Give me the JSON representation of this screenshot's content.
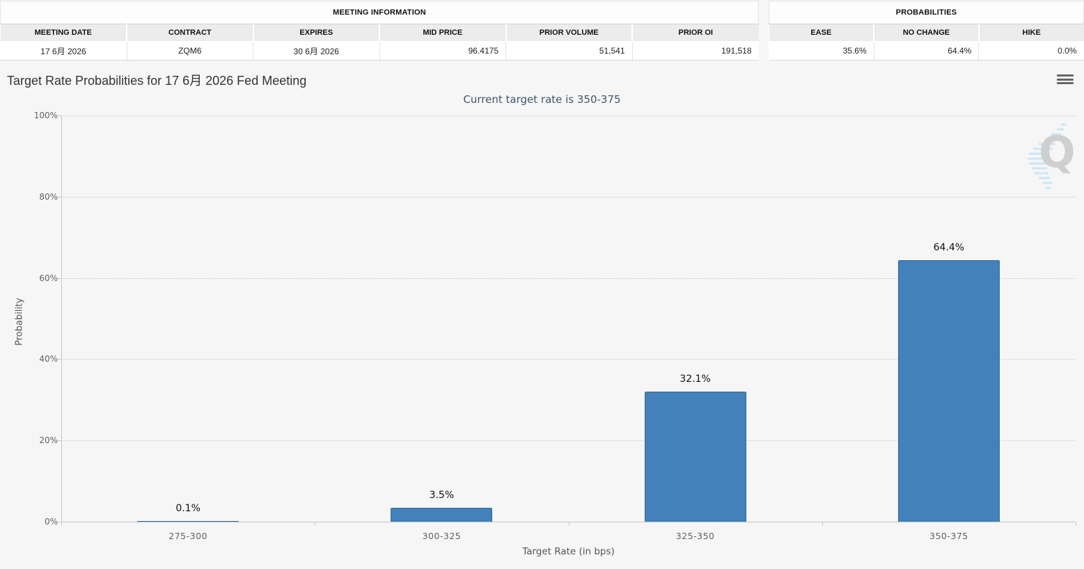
{
  "meeting_information": {
    "title": "MEETING INFORMATION",
    "columns": [
      "MEETING DATE",
      "CONTRACT",
      "EXPIRES",
      "MID PRICE",
      "PRIOR VOLUME",
      "PRIOR OI"
    ],
    "values": [
      "17 6月 2026",
      "ZQM6",
      "30 6月 2026",
      "96.4175",
      "51,541",
      "191,518"
    ]
  },
  "probabilities": {
    "title": "PROBABILITIES",
    "columns": [
      "EASE",
      "NO CHANGE",
      "HIKE"
    ],
    "values": [
      "35.6%",
      "64.4%",
      "0.0%"
    ]
  },
  "chart": {
    "title": "Target Rate Probabilities for 17 6月 2026 Fed Meeting",
    "subtitle": "Current target rate is 350-375",
    "menu_icon": "hamburger-menu-icon",
    "watermark_letter": "Q"
  },
  "chart_data": {
    "type": "bar",
    "categories": [
      "275-300",
      "300-325",
      "325-350",
      "350-375"
    ],
    "values": [
      0.1,
      3.5,
      32.1,
      64.4
    ],
    "data_labels": [
      "0.1%",
      "3.5%",
      "32.1%",
      "64.4%"
    ],
    "title": "Target Rate Probabilities for 17 6月 2026 Fed Meeting",
    "subtitle": "Current target rate is 350-375",
    "xlabel": "Target Rate (in bps)",
    "ylabel": "Probability",
    "ylim": [
      0,
      100
    ],
    "ytick_step": 20,
    "ytick_labels": [
      "0%",
      "20%",
      "40%",
      "60%",
      "80%",
      "100%"
    ],
    "grid": "horizontal-dotted",
    "legend": "none",
    "bar_color": "#4281BA"
  }
}
